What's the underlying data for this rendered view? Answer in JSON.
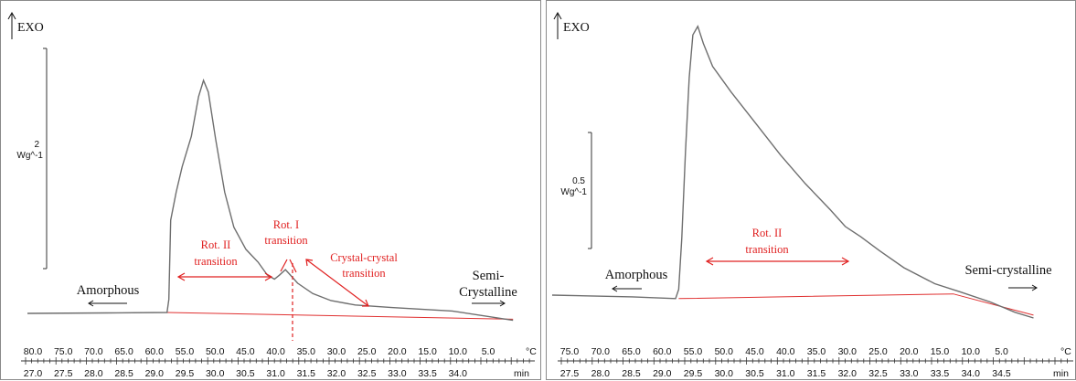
{
  "colors": {
    "curve": "#6e6e6e",
    "baseline": "#e03030",
    "annotation": "#e02020",
    "axis": "#333333",
    "text": "#111111"
  },
  "chart_data": [
    {
      "type": "line",
      "exo_label": "EXO",
      "scale_bar": {
        "value": "2",
        "unit": "Wg^-1"
      },
      "x_temperature": {
        "labels": [
          "80.0",
          "75.0",
          "70.0",
          "65.0",
          "60.0",
          "55.0",
          "50.0",
          "45.0",
          "40.0",
          "35.0",
          "30.0",
          "25.0",
          "20.0",
          "15.0",
          "10.0",
          "5.0"
        ],
        "unit": "°C"
      },
      "x_time": {
        "labels": [
          "27.0",
          "27.5",
          "28.0",
          "28.5",
          "29.0",
          "29.5",
          "30.0",
          "30.5",
          "31.0",
          "31.5",
          "32.0",
          "32.5",
          "33.0",
          "33.5",
          "34.0"
        ],
        "unit": "min",
        "range": [
          27.0,
          35.0
        ]
      },
      "series": [
        {
          "values": [
            [
              27.0,
              0.0
            ],
            [
              28.3,
              0.02
            ],
            [
              29.3,
              0.04
            ],
            [
              29.33,
              0.6
            ],
            [
              29.36,
              4.0
            ],
            [
              29.45,
              5.2
            ],
            [
              29.55,
              6.3
            ],
            [
              29.7,
              7.6
            ],
            [
              29.82,
              9.3
            ],
            [
              29.9,
              10.0
            ],
            [
              29.98,
              9.5
            ],
            [
              30.1,
              7.5
            ],
            [
              30.25,
              5.2
            ],
            [
              30.4,
              3.7
            ],
            [
              30.6,
              2.75
            ],
            [
              30.8,
              2.2
            ],
            [
              30.95,
              1.65
            ],
            [
              31.07,
              1.47
            ],
            [
              31.15,
              1.64
            ],
            [
              31.25,
              1.88
            ],
            [
              31.33,
              1.65
            ],
            [
              31.45,
              1.3
            ],
            [
              31.7,
              0.85
            ],
            [
              32.0,
              0.55
            ],
            [
              32.4,
              0.36
            ],
            [
              33.0,
              0.25
            ],
            [
              34.0,
              0.1
            ],
            [
              35.0,
              -0.3
            ]
          ]
        }
      ],
      "baseline": {
        "values": [
          [
            29.3,
            0.04
          ],
          [
            35.0,
            -0.25
          ]
        ]
      },
      "annotations": [
        {
          "text": [
            "Amorphous"
          ],
          "arrow": "left"
        },
        {
          "text": [
            "Semi-",
            "Crystalline"
          ],
          "arrow": "right"
        },
        {
          "text": [
            "Rot. II",
            "transition"
          ]
        },
        {
          "text": [
            "Rot. I",
            "transition"
          ]
        },
        {
          "text": [
            "Crystal-crystal",
            "transition"
          ]
        }
      ]
    },
    {
      "type": "line",
      "exo_label": "EXO",
      "scale_bar": {
        "value": "0.5",
        "unit": "Wg^-1"
      },
      "x_temperature": {
        "labels": [
          "75.0",
          "70.0",
          "65.0",
          "60.0",
          "55.0",
          "50.0",
          "45.0",
          "40.0",
          "35.0",
          "30.0",
          "25.0",
          "20.0",
          "15.0",
          "10.0",
          "5.0"
        ],
        "unit": "°C"
      },
      "x_time": {
        "labels": [
          "27.5",
          "28.0",
          "28.5",
          "29.0",
          "29.5",
          "30.0",
          "30.5",
          "31.0",
          "31.5",
          "32.0",
          "32.5",
          "33.0",
          "33.5",
          "34.0",
          "34.5"
        ],
        "unit": "min",
        "range": [
          27.2,
          35.0
        ]
      },
      "series": [
        {
          "values": [
            [
              27.2,
              0.0
            ],
            [
              28.5,
              -0.03
            ],
            [
              29.2,
              -0.06
            ],
            [
              29.25,
              0.1
            ],
            [
              29.3,
              1.0
            ],
            [
              29.36,
              2.5
            ],
            [
              29.42,
              3.8
            ],
            [
              29.48,
              4.55
            ],
            [
              29.56,
              4.7
            ],
            [
              29.65,
              4.4
            ],
            [
              29.8,
              4.0
            ],
            [
              30.1,
              3.55
            ],
            [
              30.5,
              3.0
            ],
            [
              30.9,
              2.45
            ],
            [
              31.3,
              1.95
            ],
            [
              31.7,
              1.5
            ],
            [
              31.95,
              1.2
            ],
            [
              32.2,
              1.02
            ],
            [
              32.5,
              0.78
            ],
            [
              32.9,
              0.48
            ],
            [
              33.4,
              0.2
            ],
            [
              33.8,
              0.06
            ],
            [
              34.3,
              -0.12
            ],
            [
              34.7,
              -0.3
            ],
            [
              35.0,
              -0.4
            ]
          ]
        }
      ],
      "baseline": {
        "values": [
          [
            29.25,
            -0.06
          ],
          [
            33.7,
            0.02
          ],
          [
            35.0,
            -0.35
          ]
        ]
      },
      "annotations": [
        {
          "text": [
            "Amorphous"
          ],
          "arrow": "left"
        },
        {
          "text": [
            "Semi-crystalline"
          ],
          "arrow": "right"
        },
        {
          "text": [
            "Rot. II",
            "transition"
          ]
        }
      ]
    }
  ]
}
